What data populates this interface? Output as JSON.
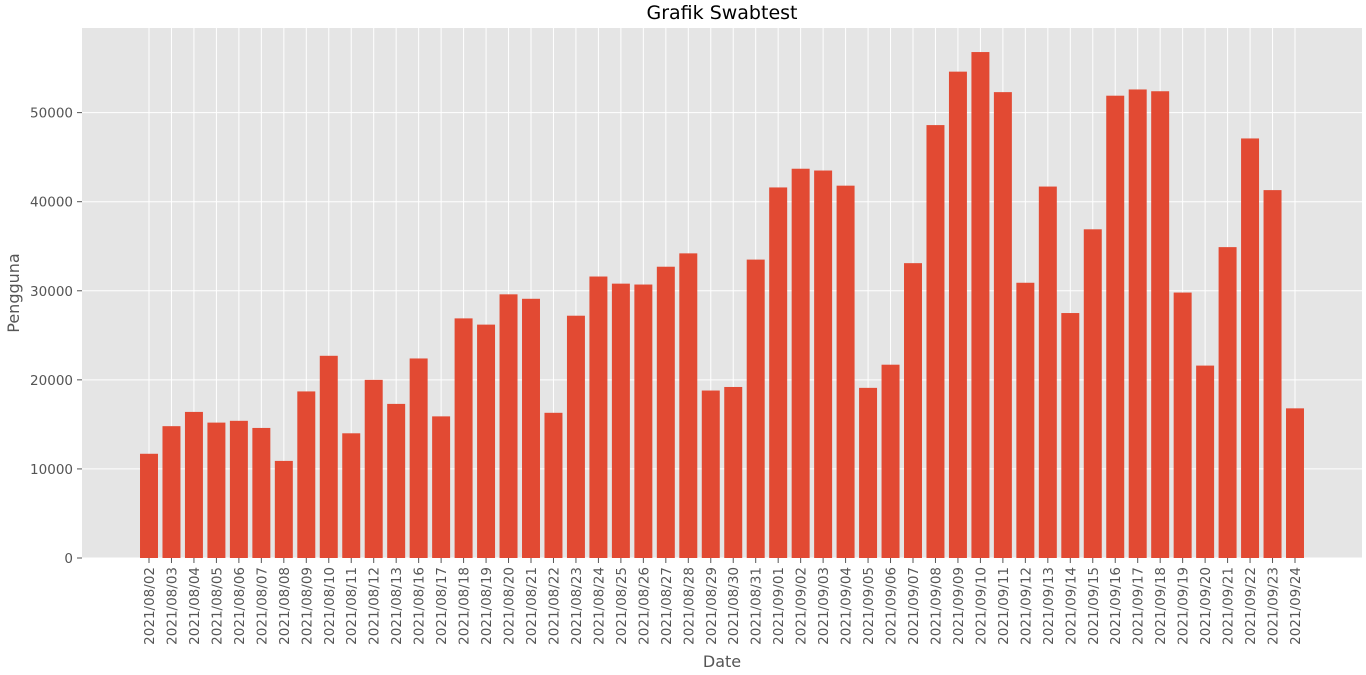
{
  "chart_data": {
    "type": "bar",
    "title": "Grafik Swabtest",
    "xlabel": "Date",
    "ylabel": "Pengguna",
    "ylim": [
      0,
      59500
    ],
    "yticks": [
      0,
      10000,
      20000,
      30000,
      40000,
      50000
    ],
    "grid": true,
    "legend": "none",
    "colors": {
      "bar": "#E24A33",
      "background": "#E5E5E5",
      "grid": "#FFFFFF"
    },
    "categories": [
      "2021/08/02",
      "2021/08/03",
      "2021/08/04",
      "2021/08/05",
      "2021/08/06",
      "2021/08/07",
      "2021/08/08",
      "2021/08/09",
      "2021/08/10",
      "2021/08/11",
      "2021/08/12",
      "2021/08/13",
      "2021/08/16",
      "2021/08/17",
      "2021/08/18",
      "2021/08/19",
      "2021/08/20",
      "2021/08/21",
      "2021/08/22",
      "2021/08/23",
      "2021/08/24",
      "2021/08/25",
      "2021/08/26",
      "2021/08/27",
      "2021/08/28",
      "2021/08/29",
      "2021/08/30",
      "2021/08/31",
      "2021/09/01",
      "2021/09/02",
      "2021/09/03",
      "2021/09/04",
      "2021/09/05",
      "2021/09/06",
      "2021/09/07",
      "2021/09/08",
      "2021/09/09",
      "2021/09/10",
      "2021/09/11",
      "2021/09/12",
      "2021/09/13",
      "2021/09/14",
      "2021/09/15",
      "2021/09/16",
      "2021/09/17",
      "2021/09/18",
      "2021/09/19",
      "2021/09/20",
      "2021/09/21",
      "2021/09/22",
      "2021/09/23",
      "2021/09/24"
    ],
    "values": [
      11700,
      14800,
      16400,
      15200,
      15400,
      14600,
      10900,
      18700,
      22700,
      14000,
      20000,
      17300,
      22400,
      15900,
      26900,
      26200,
      29600,
      29100,
      16300,
      27200,
      31600,
      30800,
      30700,
      32700,
      34200,
      18800,
      19200,
      33500,
      41600,
      43700,
      43500,
      41800,
      19100,
      21700,
      33100,
      48600,
      54600,
      56800,
      52300,
      30900,
      41700,
      27500,
      36900,
      51900,
      52600,
      52400,
      29800,
      21600,
      34900,
      47100,
      41300,
      16800
    ]
  }
}
